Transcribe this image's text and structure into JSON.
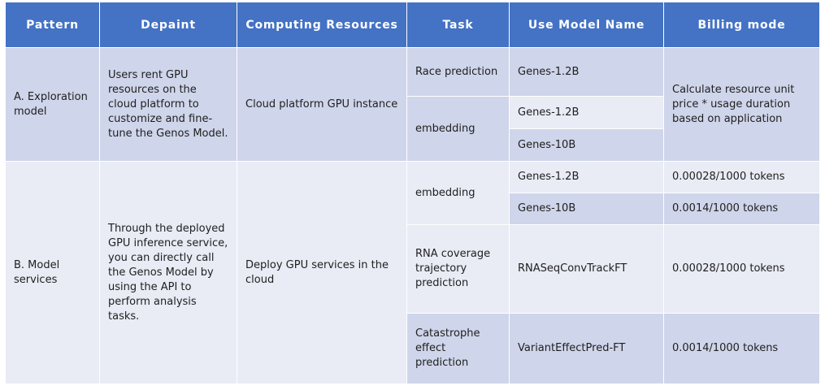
{
  "table": {
    "headers": {
      "pattern": "Pattern",
      "depaint": "Depaint",
      "computing_resources": "Computing Resources",
      "task": "Task",
      "use_model_name": "Use Model Name",
      "billing_mode": "Billing mode"
    },
    "exploration": {
      "pattern": "A. Exploration model",
      "depaint": "Users rent GPU resources on the cloud platform to customize and fine-tune the Genos Model.",
      "computing": "Cloud platform GPU instance",
      "billing": "Calculate resource unit price * usage duration based on application",
      "rows": [
        {
          "task": "Race prediction",
          "model": "Genes-1.2B"
        },
        {
          "task": "embedding",
          "model": "Genes-1.2B"
        },
        {
          "model": "Genes-10B"
        }
      ]
    },
    "services": {
      "pattern": "B. Model services",
      "depaint": "Through the deployed GPU inference service, you can directly call the Genos Model by using the API to perform analysis tasks.",
      "computing": "Deploy GPU services in the cloud",
      "rows": [
        {
          "task": "embedding",
          "model": "Genes-1.2B",
          "billing": "0.00028/1000 tokens"
        },
        {
          "model": "Genes-10B",
          "billing": "0.0014/1000 tokens"
        },
        {
          "task": "RNA coverage trajectory prediction",
          "model": "RNASeqConvTrackFT",
          "billing": "0.00028/1000 tokens"
        },
        {
          "task": "Catastrophe effect prediction",
          "model": "VariantEffectPred-FT",
          "billing": "0.0014/1000 tokens"
        }
      ]
    }
  }
}
